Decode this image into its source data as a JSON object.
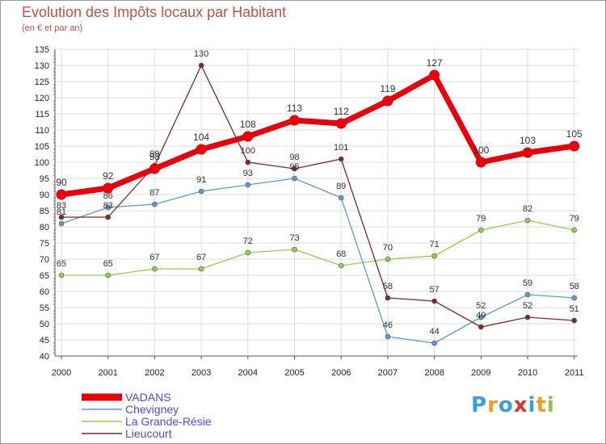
{
  "title": "Evolution des Impôts locaux par Habitant",
  "subtitle": "(en € et par an)",
  "logo_text": "Proxiti",
  "logo_colors": [
    "#3aa0d8",
    "#f0a020",
    "#3aa0d8",
    "#e03030",
    "#3aa0d8",
    "#f0a020",
    "#8cc63f"
  ],
  "chart_data": {
    "type": "line",
    "title": "Evolution des Impôts locaux par Habitant",
    "subtitle": "(en € et par an)",
    "xlabel": "",
    "ylabel": "",
    "x": [
      "2000",
      "2001",
      "2002",
      "2003",
      "2004",
      "2005",
      "2006",
      "2007",
      "2008",
      "2009",
      "2010",
      "2011"
    ],
    "ylim": [
      40,
      135
    ],
    "yticks": [
      40,
      45,
      50,
      55,
      60,
      65,
      70,
      75,
      80,
      85,
      90,
      95,
      100,
      105,
      110,
      115,
      120,
      125,
      130,
      135
    ],
    "grid": true,
    "legend_position": "bottom-left",
    "series": [
      {
        "name": "VADANS",
        "color": "#e8000b",
        "values": [
          90,
          92,
          98,
          104,
          108,
          113,
          112,
          119,
          127,
          100,
          103,
          105
        ]
      },
      {
        "name": "Chevigney",
        "color": "#5b9bd5",
        "values": [
          81,
          86,
          87,
          91,
          93,
          95,
          89,
          46,
          44,
          52,
          59,
          58
        ]
      },
      {
        "name": "La Grande-Résie",
        "color": "#92d050",
        "values": [
          65,
          65,
          67,
          67,
          72,
          73,
          68,
          70,
          71,
          79,
          82,
          79
        ]
      },
      {
        "name": "Lieucourt",
        "color": "#7b2a2a",
        "values": [
          83,
          83,
          99,
          130,
          100,
          98,
          101,
          58,
          57,
          49,
          52,
          51
        ]
      }
    ]
  }
}
